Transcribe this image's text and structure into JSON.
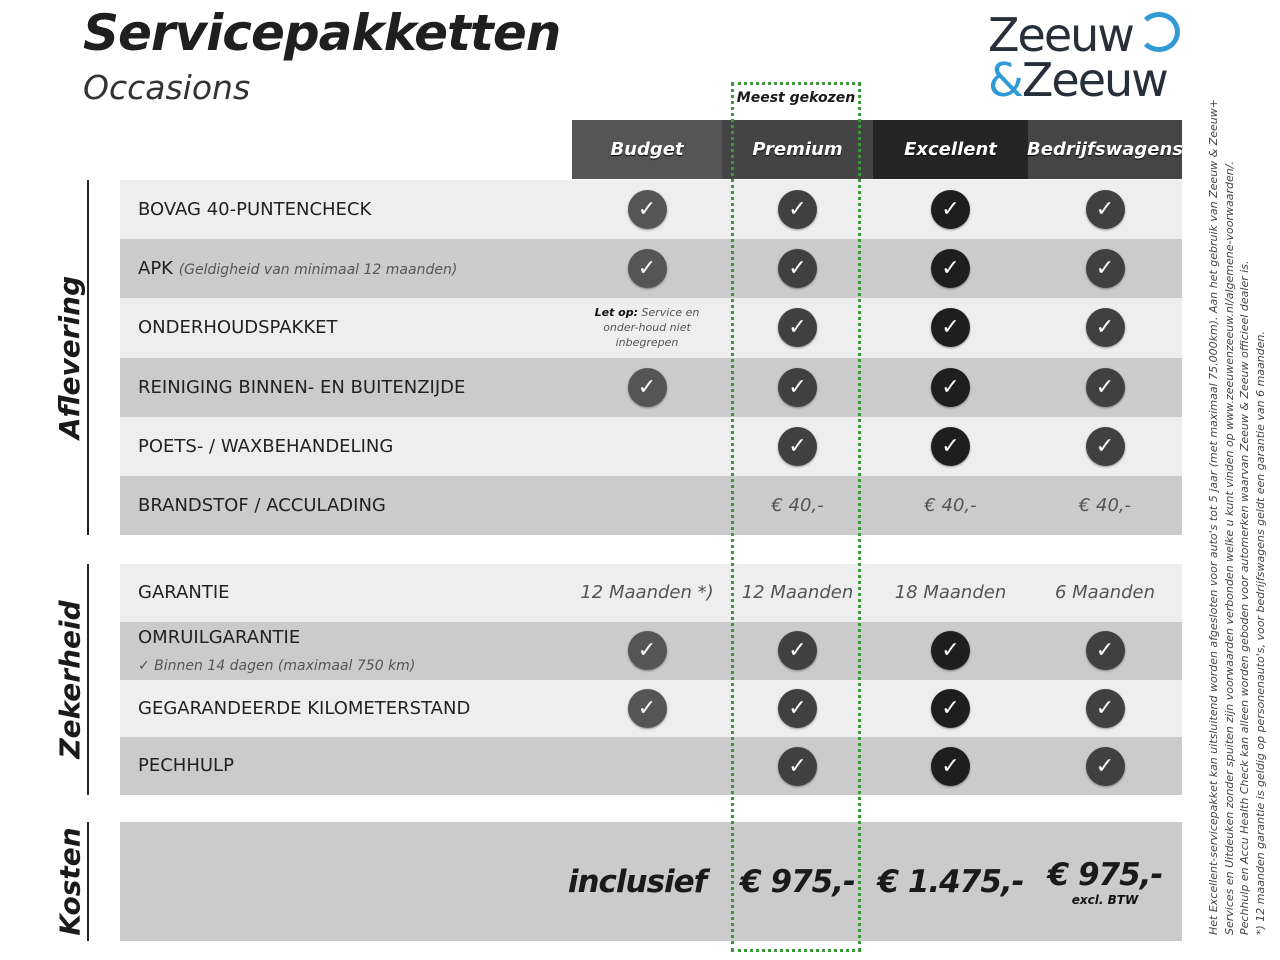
{
  "title": "Servicepakketten",
  "subtitle": "Occasions",
  "logo": {
    "line1": "Zeeuw",
    "amp": "&",
    "line2": "Zeeuw",
    "accent": "#2f9ad6"
  },
  "highlight_label": "Meest gekozen",
  "columns": [
    {
      "label": "Budget",
      "header_color": "#555555",
      "check_color": "#555555"
    },
    {
      "label": "Premium",
      "header_color": "#444444",
      "check_color": "#404040"
    },
    {
      "label": "Excellent",
      "header_color": "#252525",
      "check_color": "#1e1e1e"
    },
    {
      "label": "Bedrijfswagens",
      "header_color": "#454545",
      "check_color": "#404040"
    }
  ],
  "sections": [
    {
      "label": "Aflevering",
      "rows": [
        {
          "label": "BOVAG 40-PUNTENCHECK",
          "cells": [
            "check",
            "check",
            "check",
            "check"
          ]
        },
        {
          "label": "APK",
          "sublabel": "(Geldigheid van minimaal 12 maanden)",
          "cells": [
            "check",
            "check",
            "check",
            "check"
          ]
        },
        {
          "label": "ONDERHOUDSPAKKET",
          "cells": [
            {
              "note_bold": "Let op:",
              "note": "Service en onder-houd niet inbegrepen"
            },
            "check",
            "check",
            "check"
          ]
        },
        {
          "label": "REINIGING BINNEN- EN BUITENZIJDE",
          "cells": [
            "check",
            "check",
            "check",
            "check"
          ]
        },
        {
          "label": "POETS- / WAXBEHANDELING",
          "cells": [
            "",
            "check",
            "check",
            "check"
          ]
        },
        {
          "label": "BRANDSTOF / ACCULADING",
          "cells": [
            "",
            "€ 40,-",
            "€ 40,-",
            "€ 40,-"
          ]
        }
      ]
    },
    {
      "label": "Zekerheid",
      "rows": [
        {
          "label": "GARANTIE",
          "cells": [
            "12 Maanden *)",
            "12 Maanden",
            "18 Maanden",
            "6 Maanden"
          ]
        },
        {
          "label": "OMRUILGARANTIE",
          "detail": "✓   Binnen 14 dagen (maximaal 750 km)",
          "cells": [
            "check",
            "check",
            "check",
            "check"
          ]
        },
        {
          "label": "GEGARANDEERDE KILOMETERSTAND",
          "cells": [
            "check",
            "check",
            "check",
            "check"
          ]
        },
        {
          "label": "PECHHULP",
          "cells": [
            "",
            "check",
            "check",
            "check"
          ]
        }
      ]
    },
    {
      "label": "Kosten",
      "prices": [
        "inclusief",
        "€ 975,-",
        "€ 1.475,-",
        "€ 975,-"
      ],
      "price_note": "excl. BTW"
    }
  ],
  "footnotes": [
    "Het Excellent-servicepakket kan uitsluitend worden afgesloten voor auto's tot 5 jaar (met maximaal 75.000km). Aan het gebruik van Zeeuw & Zeeuw+",
    "Services en Uitdeuken zonder spuiten zijn voorwaarden verbonden welke u kunt vinden op www.zeeuwenzeeuw.nl/algemene-voorwaarden/.",
    "Pechhulp en Accu Health Check kan alleen worden geboden voor automerken waarvan Zeeuw & Zeeuw officieel dealer is.",
    "*) 12 maanden garantie is geldig op personenauto's, voor bedrijfswagens geldt een garantie van 6 maanden."
  ]
}
